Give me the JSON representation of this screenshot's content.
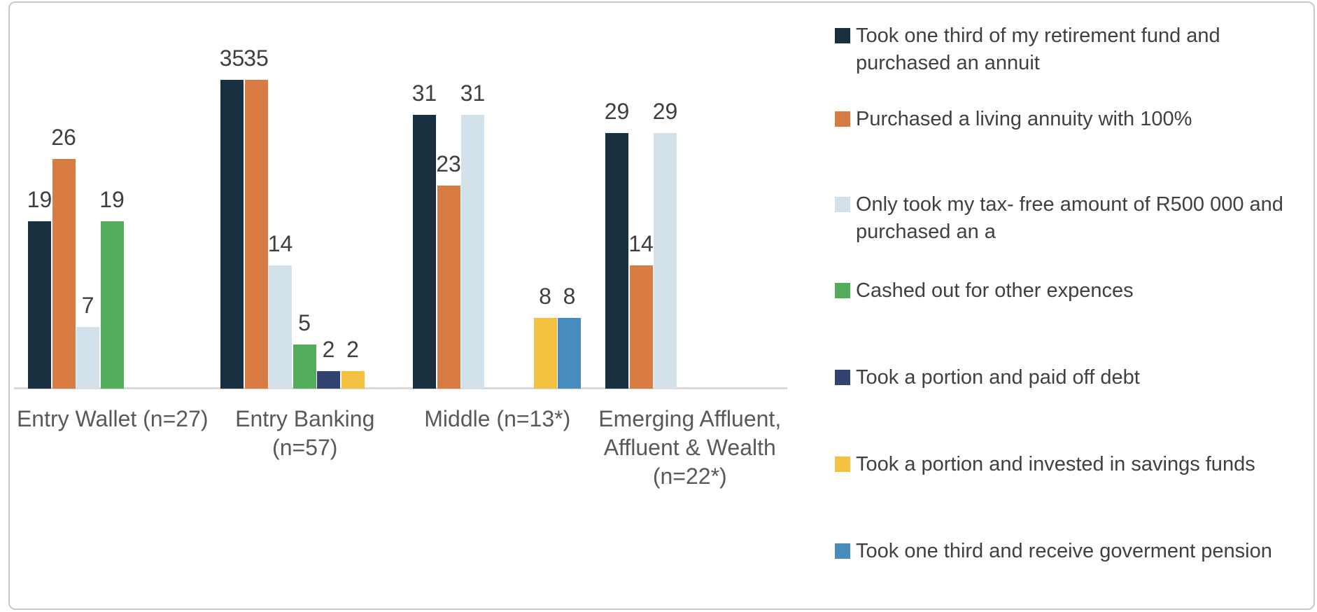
{
  "chart_data": {
    "type": "bar",
    "title": "",
    "xlabel": "",
    "ylabel": "",
    "ylim": [
      0,
      35
    ],
    "grid": false,
    "legend_position": "right",
    "data_labels": true,
    "categories": [
      "Entry Wallet (n=27)",
      "Entry Banking\n(n=57)",
      "Middle (n=13*)",
      "Emerging Affluent,\nAffluent & Wealth\n(n=22*)"
    ],
    "series": [
      {
        "name": "Took one third of my retirement fund and purchased an annuit",
        "color": "#18303F",
        "values": [
          19,
          35,
          31,
          29
        ]
      },
      {
        "name": "Purchased a living annuity with 100%",
        "color": "#D87C44",
        "values": [
          26,
          35,
          23,
          14
        ]
      },
      {
        "name": "Only took my tax- free amount of R500 000 and purchased an a",
        "color": "#D3E1EA",
        "values": [
          7,
          14,
          31,
          29
        ]
      },
      {
        "name": "Cashed out for other expences",
        "color": "#53AC5C",
        "values": [
          19,
          5,
          null,
          null
        ]
      },
      {
        "name": "Took a portion and paid off debt",
        "color": "#32436F",
        "values": [
          null,
          2,
          null,
          null
        ]
      },
      {
        "name": "Took a portion and invested in savings funds",
        "color": "#F3C240",
        "values": [
          null,
          2,
          8,
          null
        ]
      },
      {
        "name": "Took one third and receive goverment pension",
        "color": "#478CBC",
        "values": [
          null,
          null,
          8,
          null
        ]
      }
    ],
    "styles": {
      "value_label_color": "#3F3F3F",
      "category_label_color": "#595959",
      "legend_text_color": "#404040",
      "axis_line_color": "#D9D9D9",
      "frame_border_color": "#C9C9C9"
    }
  }
}
